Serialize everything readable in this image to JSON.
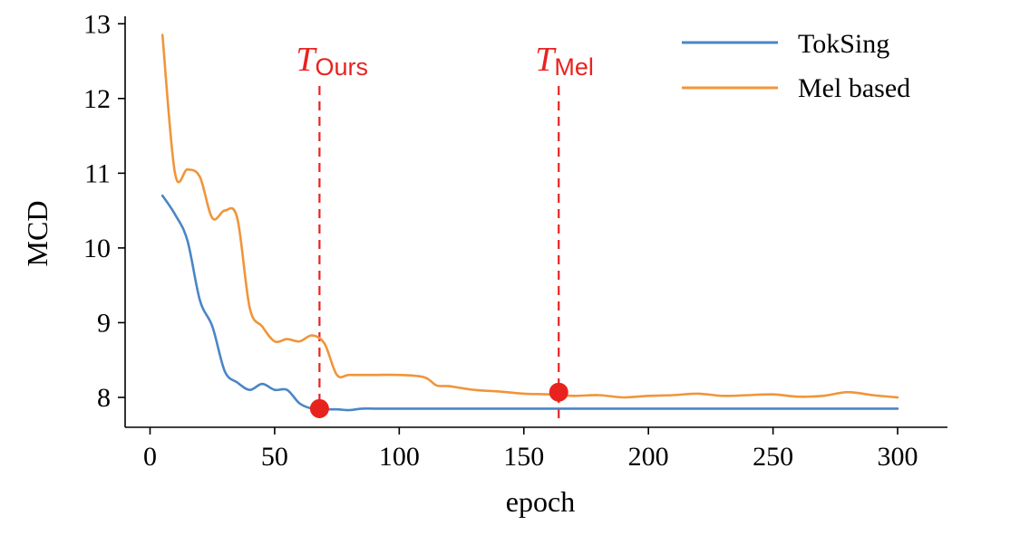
{
  "chart_data": {
    "type": "line",
    "xlabel": "epoch",
    "ylabel": "MCD",
    "xlim": [
      -10,
      320
    ],
    "ylim": [
      7.6,
      13.1
    ],
    "xticks": [
      0,
      50,
      100,
      150,
      200,
      250,
      300
    ],
    "yticks": [
      8,
      9,
      10,
      11,
      12,
      13
    ],
    "grid": false,
    "legend_position": "top-right",
    "series": [
      {
        "name": "TokSing",
        "color": "#4a86c6",
        "x": [
          5,
          10,
          15,
          20,
          25,
          30,
          35,
          40,
          45,
          50,
          55,
          60,
          65,
          70,
          75,
          80,
          85,
          90,
          100,
          150,
          200,
          250,
          300
        ],
        "y": [
          10.7,
          10.45,
          10.1,
          9.3,
          8.95,
          8.35,
          8.2,
          8.1,
          8.18,
          8.1,
          8.1,
          7.92,
          7.85,
          7.84,
          7.84,
          7.83,
          7.85,
          7.85,
          7.85,
          7.85,
          7.85,
          7.85,
          7.85
        ]
      },
      {
        "name": "Mel based",
        "color": "#f0953a",
        "x": [
          5,
          10,
          15,
          20,
          25,
          30,
          35,
          40,
          45,
          50,
          55,
          60,
          65,
          70,
          75,
          80,
          90,
          100,
          110,
          115,
          120,
          130,
          140,
          150,
          160,
          170,
          180,
          190,
          200,
          210,
          220,
          230,
          240,
          250,
          260,
          270,
          280,
          290,
          300
        ],
        "y": [
          12.85,
          11.0,
          11.05,
          10.95,
          10.4,
          10.5,
          10.4,
          9.2,
          8.95,
          8.75,
          8.78,
          8.75,
          8.83,
          8.72,
          8.3,
          8.3,
          8.3,
          8.3,
          8.27,
          8.16,
          8.15,
          8.1,
          8.08,
          8.05,
          8.04,
          8.02,
          8.03,
          8.0,
          8.02,
          8.03,
          8.05,
          8.02,
          8.03,
          8.04,
          8.01,
          8.02,
          8.07,
          8.03,
          8.0
        ]
      }
    ],
    "markers": [
      {
        "label_main": "T",
        "label_sub": "Ours",
        "x": 68,
        "y": 7.85,
        "color": "#e8231f"
      },
      {
        "label_main": "T",
        "label_sub": "Mel",
        "x": 164,
        "y": 8.07,
        "color": "#e8231f"
      }
    ]
  }
}
